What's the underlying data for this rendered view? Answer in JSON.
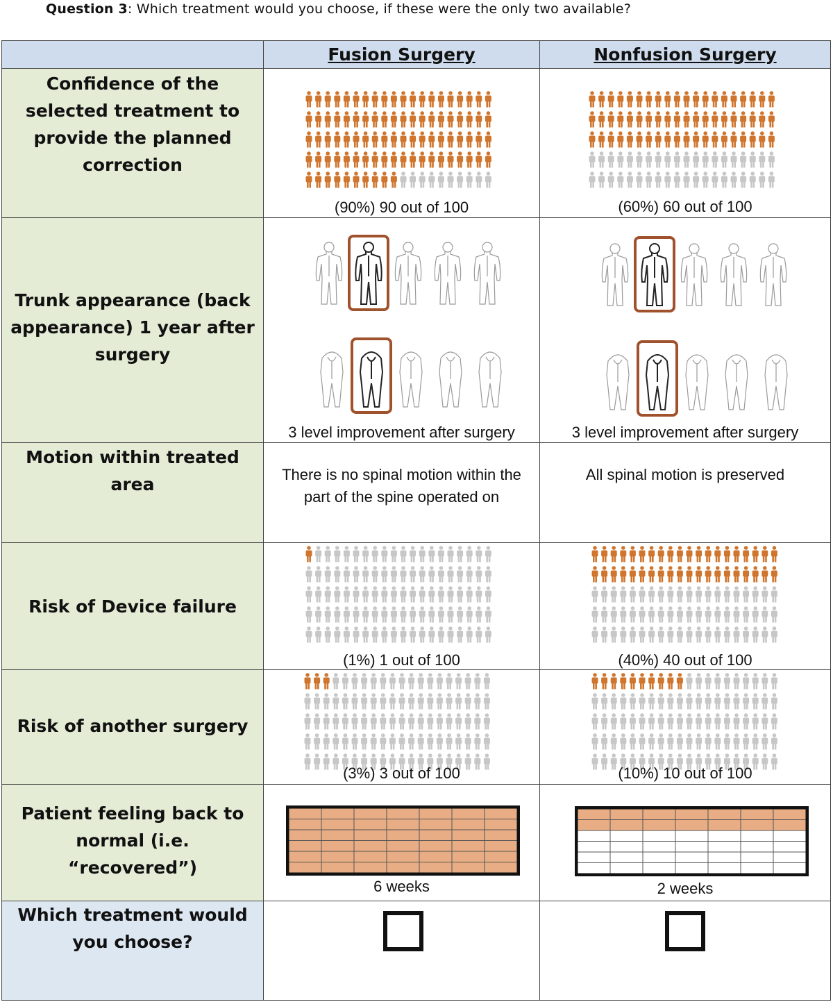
{
  "question": {
    "prefix": "Question 3",
    "text": ": Which treatment would you choose, if these were the only two available?"
  },
  "columns": {
    "fusion": "Fusion Surgery",
    "nonfusion": "Nonfusion Surgery"
  },
  "rows": {
    "confidence": {
      "label": "Confidence of the selected treatment to provide the planned correction",
      "fusion": {
        "caption": "(90%) 90 out of 100",
        "highlighted": 90
      },
      "nonfusion": {
        "caption": "(60%) 60 out of 100",
        "highlighted": 60
      }
    },
    "trunk": {
      "label": "Trunk appearance (back appearance)  1 year after surgery",
      "fusion": {
        "caption": "3 level improvement after surgery",
        "selected_index": 2
      },
      "nonfusion": {
        "caption": "3 level improvement after surgery",
        "selected_index": 2
      }
    },
    "motion": {
      "label": "Motion within treated area",
      "fusion": {
        "text": "There is no spinal motion within the part of the spine operated on"
      },
      "nonfusion": {
        "text": "All spinal motion  is preserved"
      }
    },
    "device": {
      "label": "Risk of Device failure",
      "fusion": {
        "caption": "(1%) 1 out of 100",
        "highlighted": 1
      },
      "nonfusion": {
        "caption": "(40%) 40 out of 100",
        "highlighted": 40
      }
    },
    "another": {
      "label": "Risk of another surgery",
      "fusion": {
        "caption": "(3%) 3 out of 100",
        "highlighted": 3
      },
      "nonfusion": {
        "caption": "(10%) 10 out of 100",
        "highlighted": 10
      }
    },
    "recovery": {
      "label": "Patient feeling back to normal (i.e. “recovered”)",
      "fusion": {
        "caption": "6 weeks",
        "filled_rows": 6,
        "total_rows": 6
      },
      "nonfusion": {
        "caption": "2 weeks",
        "filled_rows": 2,
        "total_rows": 6
      }
    },
    "choose": {
      "label": "Which treatment would you choose?"
    }
  },
  "colors": {
    "highlight": "#d0752d",
    "muted": "#c7c7c7",
    "frame": "#a0522d",
    "recovery_fill": "#e8ad84"
  }
}
